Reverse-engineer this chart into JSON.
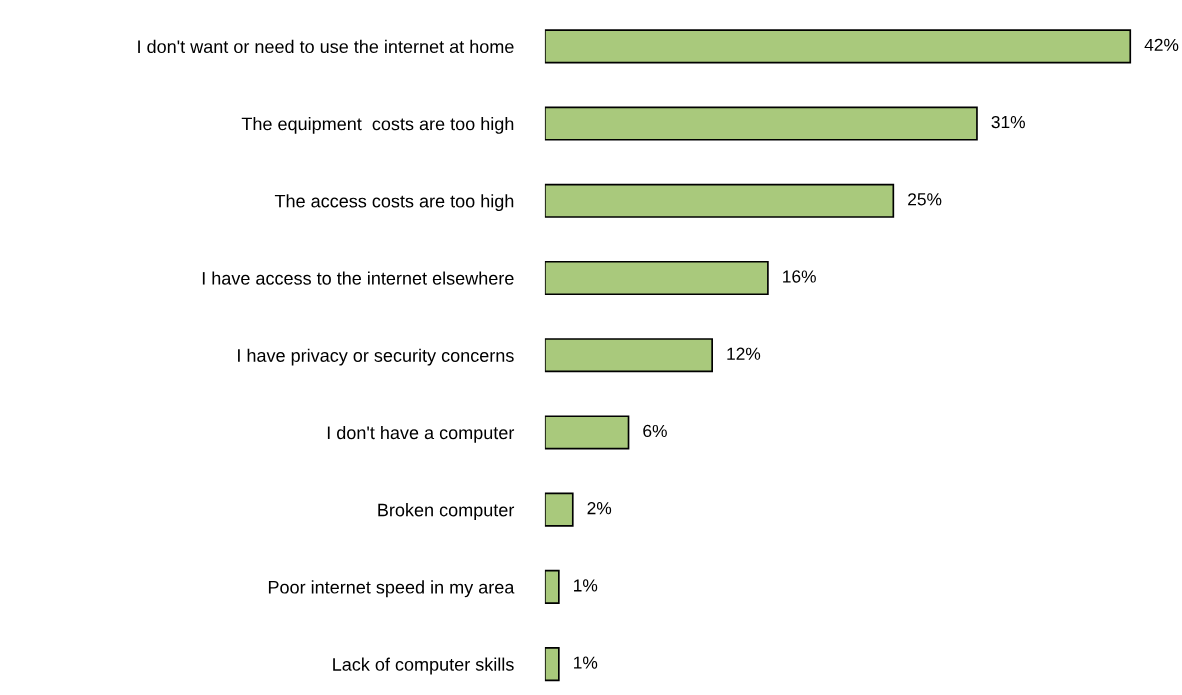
{
  "chart_data": {
    "type": "bar",
    "orientation": "horizontal",
    "categories": [
      "I don't want or need to use the internet at home",
      "The equipment  costs are too high",
      "The access costs are too high",
      "I have access to the internet elsewhere",
      "I have privacy or security concerns",
      "I don't have a computer",
      "Broken computer",
      "Poor internet speed in my area",
      "Lack of computer skills"
    ],
    "values": [
      42,
      31,
      25,
      16,
      12,
      6,
      2,
      1,
      1
    ],
    "value_labels": [
      "42%",
      "31%",
      "25%",
      "16%",
      "12%",
      "6%",
      "2%",
      "1%",
      "1%"
    ],
    "color": "#a9c97c",
    "grid": false,
    "legend": false
  }
}
